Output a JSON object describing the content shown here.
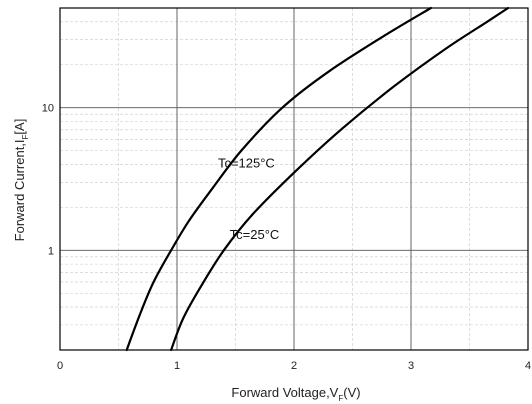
{
  "chart_data": {
    "type": "line",
    "title": "",
    "xlabel": {
      "main": "Forward Voltage,V",
      "sub": "F",
      "unit": "(V)"
    },
    "ylabel": {
      "main": "Forward Current,I",
      "sub": "F",
      "unit": "[A]"
    },
    "xlim": [
      0,
      4
    ],
    "ylim": [
      0.2,
      50
    ],
    "yscale": "log",
    "x_ticks": [
      0,
      1,
      2,
      3,
      4
    ],
    "x_tick_labels": [
      "0",
      "1",
      "2",
      "3",
      "4"
    ],
    "y_ticks": [
      1,
      10
    ],
    "y_tick_labels": [
      "1",
      "10"
    ],
    "grid": true,
    "minor_grid": true,
    "series": [
      {
        "name": "Tc=125°C",
        "color": "#000000",
        "x": [
          0.57,
          0.68,
          0.8,
          0.95,
          1.1,
          1.3,
          1.55,
          1.9,
          2.3,
          2.8,
          3.17
        ],
        "y": [
          0.2,
          0.35,
          0.6,
          1.0,
          1.6,
          2.7,
          5.0,
          10.0,
          18.0,
          33.0,
          50.0
        ]
      },
      {
        "name": "Tc=25°C",
        "color": "#000000",
        "x": [
          0.95,
          1.05,
          1.2,
          1.4,
          1.65,
          2.0,
          2.4,
          2.85,
          3.3,
          3.65,
          3.83
        ],
        "y": [
          0.2,
          0.33,
          0.55,
          1.0,
          1.8,
          3.5,
          7.0,
          14.0,
          26.0,
          40.0,
          50.0
        ]
      }
    ],
    "annotations": [
      {
        "text": "Tc=125°C",
        "x": 1.35,
        "y": 3.8
      },
      {
        "text": "Tc=25°C",
        "x": 1.45,
        "y": 1.2
      }
    ]
  }
}
